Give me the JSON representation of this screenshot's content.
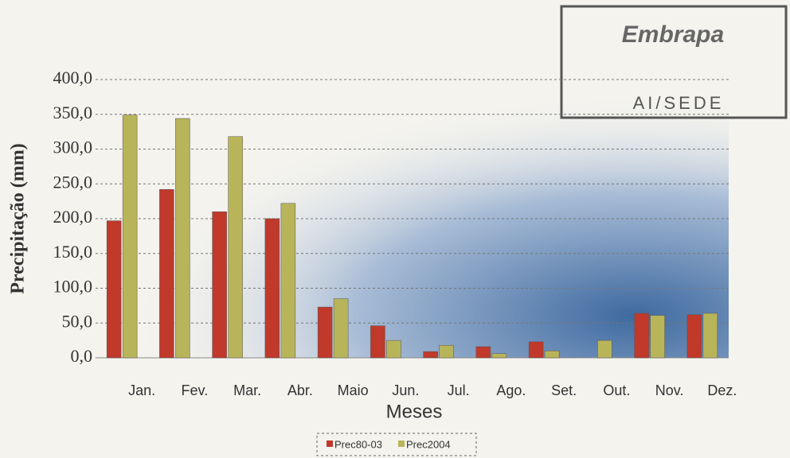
{
  "chart_data": {
    "type": "bar",
    "y_label": "Precipitação (mm)",
    "x_label": "Meses",
    "categories": [
      "Jan.",
      "Fev.",
      "Mar.",
      "Abr.",
      "Maio",
      "Jun.",
      "Jul.",
      "Ago.",
      "Set.",
      "Out.",
      "Nov.",
      "Dez."
    ],
    "series": [
      {
        "name": "Prec80-03",
        "color": "#c0392b",
        "values": [
          197,
          242,
          210,
          200,
          73,
          46,
          9,
          16,
          23,
          0,
          64,
          62
        ]
      },
      {
        "name": "Prec2004",
        "color": "#b8b45a",
        "values": [
          349,
          344,
          318,
          222,
          85,
          25,
          18,
          6,
          10,
          25,
          61,
          64
        ]
      }
    ],
    "ylim": [
      0,
      400
    ],
    "yticks": [
      {
        "value": 0,
        "label": "0,0"
      },
      {
        "value": 50,
        "label": "50,0"
      },
      {
        "value": 100,
        "label": "100,0"
      },
      {
        "value": 150,
        "label": "150,0"
      },
      {
        "value": 200,
        "label": "200,0"
      },
      {
        "value": 250,
        "label": "250,0"
      },
      {
        "value": 300,
        "label": "300,0"
      },
      {
        "value": 350,
        "label": "350,0"
      },
      {
        "value": 400,
        "label": "400,0"
      }
    ],
    "grid": true
  },
  "stamp": {
    "logo": "Embrapa",
    "text": "AI/SEDE"
  }
}
